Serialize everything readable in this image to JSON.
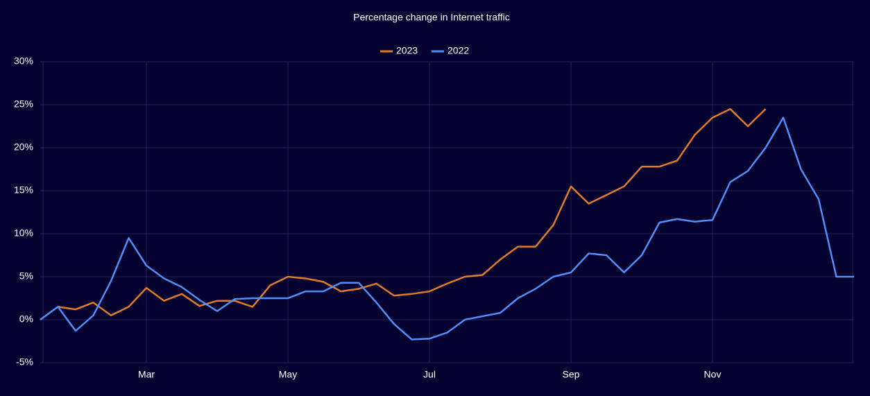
{
  "chart_data": {
    "type": "line",
    "title": "Percentage change in Internet traffic",
    "categories": [
      null,
      null,
      null,
      null,
      null,
      null,
      "Mar",
      null,
      null,
      null,
      null,
      null,
      null,
      null,
      "May",
      null,
      null,
      null,
      null,
      null,
      null,
      null,
      "Jul",
      null,
      null,
      null,
      null,
      null,
      null,
      null,
      "Sep",
      null,
      null,
      null,
      null,
      null,
      null,
      null,
      "Nov",
      null,
      null,
      null,
      null,
      null,
      null,
      null,
      null
    ],
    "series": [
      {
        "name": "2023",
        "color": "#e07b2a",
        "values": [
          0,
          1.5,
          1.2,
          2,
          0.5,
          1.5,
          3.7,
          2.2,
          3,
          1.6,
          2.2,
          2.2,
          1.5,
          4,
          5,
          4.8,
          4.4,
          3.3,
          3.6,
          4.2,
          2.8,
          3,
          3.3,
          4.2,
          5,
          5.2,
          7,
          8.5,
          8.5,
          11,
          15.5,
          13.5,
          14.5,
          15.5,
          17.8,
          17.8,
          18.5,
          21.5,
          23.5,
          24.5,
          22.5,
          24.5,
          null,
          null,
          null,
          null,
          null
        ]
      },
      {
        "name": "2022",
        "color": "#4f8ff7",
        "values": [
          0,
          1.5,
          -1.3,
          0.5,
          4.5,
          9.5,
          6.3,
          4.8,
          3.8,
          2.3,
          1,
          2.4,
          2.5,
          2.5,
          2.5,
          3.3,
          3.3,
          4.3,
          4.3,
          2,
          -0.5,
          -2.3,
          -2.2,
          -1.5,
          0,
          0.4,
          0.8,
          2.5,
          3.6,
          5,
          5.5,
          7.7,
          7.5,
          5.5,
          7.5,
          11.3,
          11.7,
          11.4,
          11.6,
          16,
          17.3,
          20,
          23.5,
          17.5,
          14,
          5,
          5
        ]
      }
    ],
    "ylim": [
      -5,
      30
    ],
    "yticks": [
      {
        "value": -5,
        "label": "-5%"
      },
      {
        "value": 0,
        "label": "0%"
      },
      {
        "value": 5,
        "label": "5%"
      },
      {
        "value": 10,
        "label": "10%"
      },
      {
        "value": 15,
        "label": "15%"
      },
      {
        "value": 20,
        "label": "20%"
      },
      {
        "value": 25,
        "label": "25%"
      },
      {
        "value": 30,
        "label": "30%"
      }
    ],
    "grid": true,
    "legend": "top"
  }
}
